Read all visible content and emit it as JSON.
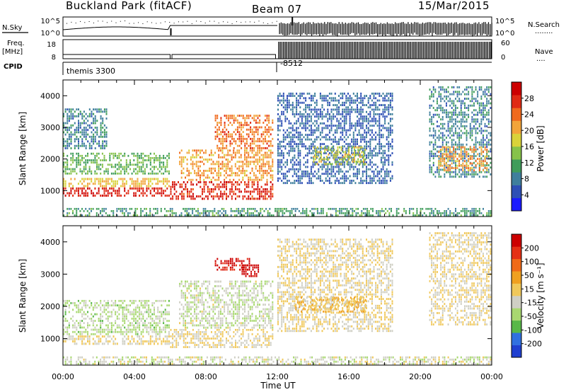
{
  "header": {
    "station": "Buckland Park (fitACF)",
    "beam": "Beam 07",
    "date": "15/Mar/2015"
  },
  "colors": {
    "power_scale": [
      "#1a1aff",
      "#2e4fb5",
      "#3f7f9c",
      "#3f9c5a",
      "#86c24a",
      "#d9d23a",
      "#f2a43a",
      "#f06a1e",
      "#e02a14",
      "#cc0000"
    ],
    "velocity_scale": [
      "#1f3fd0",
      "#3070e0",
      "#58b848",
      "#a9d870",
      "#cfcfc4",
      "#f0c85a",
      "#f0a020",
      "#f06a18",
      "#e53015",
      "#cc0000"
    ]
  },
  "noise_panel": {
    "left_label": "N.Sky",
    "left_ticks": [
      "10^5",
      "10^0"
    ],
    "right_ticks": [
      "10^5",
      "10^0"
    ],
    "right_label": "N.Search",
    "right_legend": "........"
  },
  "freq_panel": {
    "left_label_1": "Freq.",
    "left_label_2": "[MHz]",
    "left_ticks": [
      "18",
      "8"
    ],
    "right_ticks": [
      "60",
      "0"
    ],
    "right_label": "Nave",
    "right_legend": "...."
  },
  "cpid_panel": {
    "label": "CPID",
    "segments": [
      {
        "start_hour": 0.0,
        "text": "themis 3300"
      },
      {
        "start_hour": 12.0,
        "text": "-8512"
      }
    ]
  },
  "power_panel": {
    "ylabel": "Slant Range [km]",
    "colorbar_label": "Power [dB]",
    "colorbar_ticks": [
      "28",
      "24",
      "20",
      "16",
      "12",
      "8",
      "4"
    ]
  },
  "velocity_panel": {
    "ylabel": "Slant Range [km]",
    "colorbar_label": "Velocity [m s⁻¹]",
    "colorbar_ticks": [
      "200",
      "100",
      "50",
      "15",
      "-15",
      "-50",
      "-100",
      "-200"
    ]
  },
  "time_axis": {
    "xlabel": "Time UT",
    "tick_labels": [
      "00:00",
      "04:00",
      "08:00",
      "12:00",
      "16:00",
      "20:00",
      "00:00"
    ]
  },
  "chart_data": [
    {
      "type": "heatmap",
      "title": "",
      "quantity": "Power [dB]",
      "xlabel": "Time UT",
      "ylabel": "Slant Range [km]",
      "xlim_hours": [
        0,
        24
      ],
      "ylim_km": [
        180,
        4500
      ],
      "yticks": [
        1000,
        2000,
        3000,
        4000
      ],
      "value_range": [
        0,
        30
      ],
      "regions": [
        {
          "t0": 0.0,
          "t1": 6.0,
          "r0": 800,
          "r1": 1100,
          "value": 27
        },
        {
          "t0": 0.0,
          "t1": 6.0,
          "r0": 1100,
          "r1": 1400,
          "value": 18
        },
        {
          "t0": 0.0,
          "t1": 6.0,
          "r0": 1500,
          "r1": 2200,
          "value": 12
        },
        {
          "t0": 0.0,
          "t1": 2.5,
          "r0": 2300,
          "r1": 3600,
          "value": 8
        },
        {
          "t0": 6.0,
          "t1": 11.8,
          "r0": 700,
          "r1": 1300,
          "value": 26
        },
        {
          "t0": 6.5,
          "t1": 11.8,
          "r0": 1300,
          "r1": 2300,
          "value": 20
        },
        {
          "t0": 8.5,
          "t1": 11.8,
          "r0": 2300,
          "r1": 3400,
          "value": 22
        },
        {
          "t0": 0.0,
          "t1": 24.0,
          "r0": 180,
          "r1": 450,
          "value": 10
        },
        {
          "t0": 12.0,
          "t1": 18.5,
          "r0": 1200,
          "r1": 4100,
          "value": 6
        },
        {
          "t0": 14.0,
          "t1": 17.0,
          "r0": 1800,
          "r1": 2400,
          "value": 16
        },
        {
          "t0": 20.5,
          "t1": 24.0,
          "r0": 1400,
          "r1": 4300,
          "value": 8
        },
        {
          "t0": 21.0,
          "t1": 23.8,
          "r0": 1600,
          "r1": 2400,
          "value": 20
        }
      ]
    },
    {
      "type": "heatmap",
      "title": "",
      "quantity": "Velocity [m s⁻¹]",
      "xlabel": "Time UT",
      "ylabel": "Slant Range [km]",
      "xlim_hours": [
        0,
        24
      ],
      "ylim_km": [
        180,
        4500
      ],
      "yticks": [
        1000,
        2000,
        3000,
        4000
      ],
      "value_range": [
        -250,
        250
      ],
      "regions": [
        {
          "t0": 0.0,
          "t1": 6.0,
          "r0": 800,
          "r1": 1100,
          "value": 0
        },
        {
          "t0": 0.0,
          "t1": 6.0,
          "r0": 1100,
          "r1": 2200,
          "value": -60
        },
        {
          "t0": 6.0,
          "t1": 11.8,
          "r0": 700,
          "r1": 1300,
          "value": 0
        },
        {
          "t0": 6.5,
          "t1": 11.8,
          "r0": 1300,
          "r1": 2800,
          "value": -40
        },
        {
          "t0": 8.5,
          "t1": 10.5,
          "r0": 3100,
          "r1": 3500,
          "value": 220
        },
        {
          "t0": 10.0,
          "t1": 11.0,
          "r0": 2900,
          "r1": 3300,
          "value": 240
        },
        {
          "t0": 0.0,
          "t1": 24.0,
          "r0": 180,
          "r1": 450,
          "value": -30
        },
        {
          "t0": 12.0,
          "t1": 18.5,
          "r0": 1200,
          "r1": 4100,
          "value": 0
        },
        {
          "t0": 13.0,
          "t1": 17.0,
          "r0": 1800,
          "r1": 2300,
          "value": 40
        },
        {
          "t0": 20.5,
          "t1": 24.0,
          "r0": 1400,
          "r1": 4300,
          "value": 0
        }
      ]
    }
  ]
}
